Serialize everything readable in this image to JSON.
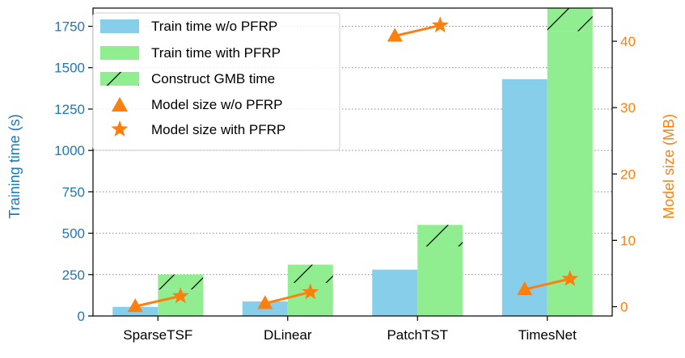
{
  "chart_data": {
    "type": "bar",
    "categories": [
      "SparseTSF",
      "DLinear",
      "PatchTST",
      "TimesNet"
    ],
    "series": [
      {
        "name": "Train time w/o PFRP",
        "axis": "left",
        "values": [
          55,
          88,
          280,
          1430
        ]
      },
      {
        "name": "Train time with PFRP",
        "axis": "left",
        "values": [
          160,
          200,
          420,
          1720
        ]
      },
      {
        "name": "Construct GMB time",
        "axis": "left",
        "stacked_on": "Train time with PFRP",
        "values": [
          90,
          110,
          130,
          140
        ]
      },
      {
        "name": "Model size w/o PFRP",
        "axis": "right",
        "marker": "triangle",
        "values": [
          0.05,
          0.5,
          40.8,
          2.6
        ]
      },
      {
        "name": "Model size with PFRP",
        "axis": "right",
        "marker": "star",
        "values": [
          1.6,
          2.2,
          42.4,
          4.2
        ]
      }
    ],
    "legend": {
      "position": "top-left",
      "entries": [
        "Train time w/o PFRP",
        "Train time with PFRP",
        "Construct GMB time",
        "Model size w/o PFRP",
        "Model size with PFRP"
      ]
    },
    "ylabel_left": "Training time (s)",
    "ylabel_right": "Model size (MB)",
    "ylim_left": [
      0,
      1860
    ],
    "ylim_right": [
      -1.4,
      45
    ],
    "yticks_left": [
      "0",
      "250",
      "500",
      "750",
      "1000",
      "1250",
      "1500",
      "1750"
    ],
    "yticks_right": [
      "0",
      "10",
      "20",
      "30",
      "40"
    ],
    "grid": "horizontal dotted",
    "colors": {
      "wo_pfrp": "#87ceeb",
      "with_pfrp": "#90ee90",
      "left_axis": "#1f77b4",
      "right_axis": "#ff7f0e"
    }
  }
}
